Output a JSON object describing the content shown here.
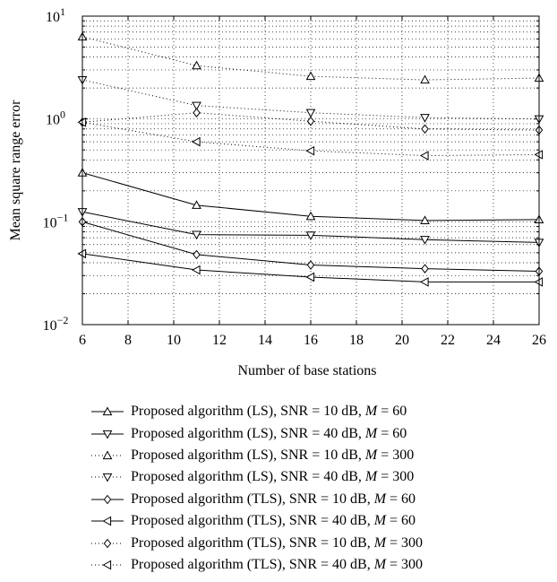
{
  "chart_data": {
    "type": "line",
    "title": "",
    "xlabel": "Number of base stations",
    "ylabel": "Mean square range error",
    "y_scale": "log",
    "xlim": [
      6,
      26
    ],
    "ylim": [
      0.01,
      10
    ],
    "x_ticks": [
      "6",
      "8",
      "10",
      "12",
      "14",
      "16",
      "18",
      "20",
      "22",
      "24",
      "26"
    ],
    "y_ticks": [
      {
        "base": "10",
        "exp": "1"
      },
      {
        "base": "10",
        "exp": "0"
      },
      {
        "base": "10",
        "exp": "−1"
      },
      {
        "base": "10",
        "exp": "−2"
      }
    ],
    "grid": true,
    "legend_position": "below",
    "x": [
      6,
      11,
      16,
      21,
      26
    ],
    "series": [
      {
        "name": "Proposed algorithm (LS), SNR = 10 dB, M = 60",
        "name_parts": [
          "Proposed algorithm (LS), SNR = 10 dB, ",
          "M",
          " = 60"
        ],
        "marker": "triangle-up",
        "line": "solid",
        "values": [
          0.3,
          0.145,
          0.113,
          0.103,
          0.105
        ]
      },
      {
        "name": "Proposed algorithm (LS), SNR = 40 dB, M = 60",
        "name_parts": [
          "Proposed algorithm (LS), SNR = 40 dB, ",
          "M",
          " = 60"
        ],
        "marker": "triangle-down",
        "line": "solid",
        "values": [
          0.125,
          0.075,
          0.074,
          0.067,
          0.063
        ]
      },
      {
        "name": "Proposed algorithm (LS), SNR = 10 dB, M = 300",
        "name_parts": [
          "Proposed algorithm (LS), SNR = 10 dB, ",
          "M",
          " = 300"
        ],
        "marker": "triangle-up",
        "line": "dotted",
        "values": [
          6.3,
          3.3,
          2.6,
          2.4,
          2.5
        ]
      },
      {
        "name": "Proposed algorithm (LS), SNR = 40 dB, M = 300",
        "name_parts": [
          "Proposed algorithm (LS), SNR = 40 dB, ",
          "M",
          " = 300"
        ],
        "marker": "triangle-down",
        "line": "dotted",
        "values": [
          2.4,
          1.35,
          1.15,
          1.03,
          1.0
        ]
      },
      {
        "name": "Proposed algorithm (TLS), SNR = 10 dB, M = 60",
        "name_parts": [
          "Proposed algorithm (TLS), SNR = 10 dB, ",
          "M",
          " = 60"
        ],
        "marker": "diamond",
        "line": "solid",
        "values": [
          0.1,
          0.048,
          0.038,
          0.035,
          0.033
        ]
      },
      {
        "name": "Proposed algorithm (TLS), SNR = 40 dB, M = 60",
        "name_parts": [
          "Proposed algorithm (TLS), SNR = 40 dB, ",
          "M",
          " = 60"
        ],
        "marker": "triangle-left",
        "line": "solid",
        "values": [
          0.049,
          0.034,
          0.029,
          0.026,
          0.026
        ]
      },
      {
        "name": "Proposed algorithm (TLS), SNR = 10 dB, M = 300",
        "name_parts": [
          "Proposed algorithm (TLS), SNR = 10 dB, ",
          "M",
          " = 300"
        ],
        "marker": "diamond",
        "line": "dotted",
        "values": [
          0.93,
          1.15,
          0.95,
          0.8,
          0.78
        ]
      },
      {
        "name": "Proposed algorithm (TLS), SNR = 40 dB, M = 300",
        "name_parts": [
          "Proposed algorithm (TLS), SNR = 40 dB, ",
          "M",
          " = 300"
        ],
        "marker": "triangle-left",
        "line": "dotted",
        "values": [
          0.93,
          0.6,
          0.49,
          0.44,
          0.45
        ]
      }
    ]
  }
}
